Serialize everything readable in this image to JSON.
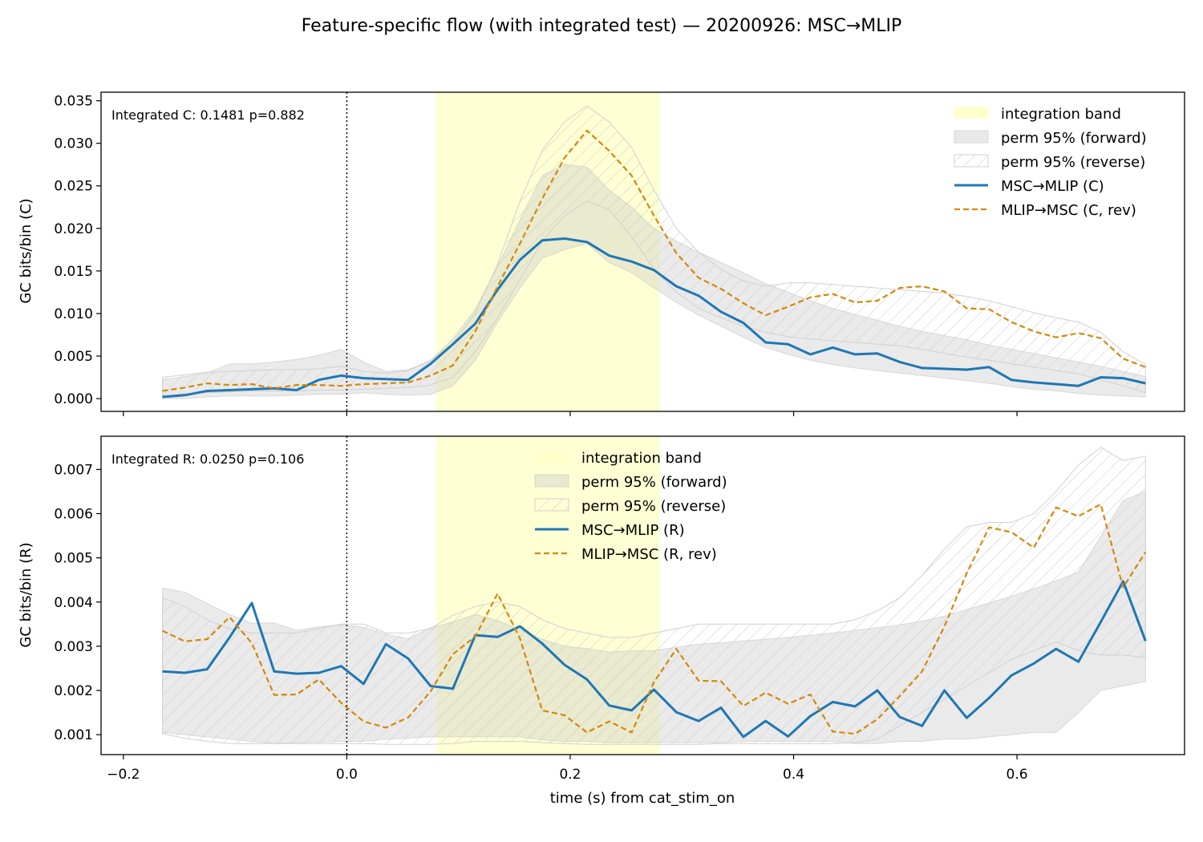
{
  "figure": {
    "title": "Feature-specific flow (with integrated test) — 20200926: MSC→MLIP",
    "xlabel": "time (s) from cat_stim_on"
  },
  "colors": {
    "forward": "#1f77b4",
    "reverse": "#d4880a",
    "integration_band": "#ffffcc",
    "perm_forward": "#c8c8c8",
    "perm_reverse_hatch": "#cfcfcf"
  },
  "chart_data": [
    {
      "type": "line",
      "panel": "C",
      "annotation": "Integrated C: 0.1481  p=0.882",
      "ylabel": "GC bits/bin (C)",
      "xlim": [
        -0.22,
        0.75
      ],
      "ylim": [
        -0.0015,
        0.036
      ],
      "xticks": [
        -0.2,
        0.0,
        0.2,
        0.4,
        0.6
      ],
      "xtick_labels": [
        "",
        "",
        "",
        "",
        ""
      ],
      "yticks": [
        0.0,
        0.005,
        0.01,
        0.015,
        0.02,
        0.025,
        0.03,
        0.035
      ],
      "ytick_labels": [
        "0.000",
        "0.005",
        "0.010",
        "0.015",
        "0.020",
        "0.025",
        "0.030",
        "0.035"
      ],
      "legend_position": "top-right",
      "legend": [
        "integration band",
        "perm 95% (forward)",
        "perm 95% (reverse)",
        "MSC→MLIP (C)",
        "MLIP→MSC (C, rev)"
      ],
      "integration_band": [
        0.08,
        0.28
      ],
      "vline_x": 0.0,
      "x": [
        -0.165,
        -0.145,
        -0.125,
        -0.105,
        -0.085,
        -0.065,
        -0.045,
        -0.025,
        -0.005,
        0.015,
        0.035,
        0.055,
        0.075,
        0.095,
        0.115,
        0.135,
        0.155,
        0.175,
        0.195,
        0.215,
        0.235,
        0.255,
        0.275,
        0.295,
        0.315,
        0.335,
        0.355,
        0.375,
        0.395,
        0.415,
        0.435,
        0.455,
        0.475,
        0.495,
        0.515,
        0.535,
        0.555,
        0.575,
        0.595,
        0.615,
        0.635,
        0.655,
        0.675,
        0.695,
        0.715
      ],
      "series": [
        {
          "name": "MSC→MLIP (C)",
          "role": "forward",
          "values": [
            0.0002,
            0.0004,
            0.0009,
            0.001,
            0.0011,
            0.0012,
            0.001,
            0.0022,
            0.0027,
            0.0024,
            0.0023,
            0.0022,
            0.0041,
            0.0064,
            0.0088,
            0.0128,
            0.0163,
            0.0186,
            0.0188,
            0.0184,
            0.0168,
            0.0161,
            0.0151,
            0.0132,
            0.0121,
            0.0102,
            0.0089,
            0.0066,
            0.0064,
            0.0052,
            0.006,
            0.0052,
            0.0053,
            0.0043,
            0.0036,
            0.0035,
            0.0034,
            0.0037,
            0.0022,
            0.0019,
            0.0017,
            0.0015,
            0.0025,
            0.0024,
            0.0018
          ]
        },
        {
          "name": "MLIP→MSC (C, rev)",
          "role": "reverse",
          "values": [
            0.0009,
            0.0013,
            0.0018,
            0.0016,
            0.0017,
            0.0012,
            0.0016,
            0.0016,
            0.0015,
            0.0017,
            0.0018,
            0.0019,
            0.0027,
            0.0039,
            0.0079,
            0.0132,
            0.0182,
            0.0235,
            0.0283,
            0.0315,
            0.0291,
            0.0262,
            0.0215,
            0.0171,
            0.0142,
            0.0129,
            0.0112,
            0.0098,
            0.0108,
            0.0119,
            0.0123,
            0.0113,
            0.0115,
            0.013,
            0.0132,
            0.0126,
            0.0106,
            0.0105,
            0.009,
            0.0079,
            0.0072,
            0.0077,
            0.0071,
            0.0047,
            0.0037
          ]
        }
      ],
      "bands": [
        {
          "name": "perm 95% (forward)",
          "lower": [
            0.0,
            0.0,
            0.0002,
            0.0003,
            0.0003,
            0.0003,
            0.0004,
            0.0005,
            0.0005,
            0.0007,
            0.0005,
            0.0004,
            0.0005,
            0.0015,
            0.0045,
            0.009,
            0.013,
            0.0165,
            0.0175,
            0.0182,
            0.016,
            0.0148,
            0.013,
            0.0113,
            0.0098,
            0.0085,
            0.0072,
            0.006,
            0.0052,
            0.0045,
            0.004,
            0.0036,
            0.0033,
            0.003,
            0.0027,
            0.0024,
            0.0021,
            0.0018,
            0.0014,
            0.0011,
            0.0009,
            0.0006,
            0.0004,
            0.0003,
            0.0002
          ],
          "upper": [
            0.0022,
            0.0026,
            0.003,
            0.0041,
            0.0041,
            0.0043,
            0.0046,
            0.0051,
            0.0058,
            0.0043,
            0.0032,
            0.0034,
            0.0045,
            0.007,
            0.0105,
            0.0155,
            0.021,
            0.0262,
            0.0275,
            0.0272,
            0.0245,
            0.0225,
            0.02,
            0.0185,
            0.0172,
            0.016,
            0.0148,
            0.0135,
            0.0125,
            0.0115,
            0.0106,
            0.0099,
            0.0092,
            0.0085,
            0.0079,
            0.0074,
            0.0069,
            0.0063,
            0.0058,
            0.0053,
            0.0048,
            0.0043,
            0.0038,
            0.0032,
            0.0026
          ]
        },
        {
          "name": "perm 95% (reverse)",
          "lower": [
            0.0003,
            0.0006,
            0.0007,
            0.0008,
            0.0009,
            0.0009,
            0.0009,
            0.001,
            0.001,
            0.0011,
            0.0012,
            0.0013,
            0.0016,
            0.0025,
            0.0055,
            0.0095,
            0.014,
            0.0185,
            0.0215,
            0.0232,
            0.0222,
            0.019,
            0.0152,
            0.0125,
            0.0106,
            0.0095,
            0.0085,
            0.0078,
            0.0073,
            0.007,
            0.0068,
            0.0066,
            0.0064,
            0.0062,
            0.0058,
            0.0053,
            0.0049,
            0.0045,
            0.0041,
            0.0037,
            0.0033,
            0.0029,
            0.0022,
            0.0015,
            0.0007
          ],
          "upper": [
            0.0025,
            0.0028,
            0.0031,
            0.0032,
            0.0033,
            0.0034,
            0.0034,
            0.0035,
            0.0038,
            0.0032,
            0.003,
            0.0033,
            0.0045,
            0.0065,
            0.01,
            0.0158,
            0.0232,
            0.0292,
            0.0325,
            0.0344,
            0.0325,
            0.0295,
            0.0245,
            0.02,
            0.0172,
            0.0152,
            0.0138,
            0.0132,
            0.0136,
            0.0136,
            0.0134,
            0.0132,
            0.013,
            0.0128,
            0.0126,
            0.0124,
            0.012,
            0.0115,
            0.0108,
            0.0101,
            0.0095,
            0.009,
            0.0078,
            0.0055,
            0.004
          ]
        }
      ]
    },
    {
      "type": "line",
      "panel": "R",
      "annotation": "Integrated R: 0.0250  p=0.106",
      "ylabel": "GC bits/bin (R)",
      "xlim": [
        -0.22,
        0.75
      ],
      "ylim": [
        0.00055,
        0.00775
      ],
      "xticks": [
        -0.2,
        0.0,
        0.2,
        0.4,
        0.6
      ],
      "xtick_labels": [
        "−0.2",
        "0.0",
        "0.2",
        "0.4",
        "0.6"
      ],
      "yticks": [
        0.001,
        0.002,
        0.003,
        0.004,
        0.005,
        0.006,
        0.007
      ],
      "ytick_labels": [
        "0.001",
        "0.002",
        "0.003",
        "0.004",
        "0.005",
        "0.006",
        "0.007"
      ],
      "legend_position": "top-center",
      "legend": [
        "integration band",
        "perm 95% (forward)",
        "perm 95% (reverse)",
        "MSC→MLIP (R)",
        "MLIP→MSC (R, rev)"
      ],
      "integration_band": [
        0.08,
        0.28
      ],
      "vline_x": 0.0,
      "x": [
        -0.165,
        -0.145,
        -0.125,
        -0.105,
        -0.085,
        -0.065,
        -0.045,
        -0.025,
        -0.005,
        0.015,
        0.035,
        0.055,
        0.075,
        0.095,
        0.115,
        0.135,
        0.155,
        0.175,
        0.195,
        0.215,
        0.235,
        0.255,
        0.275,
        0.295,
        0.315,
        0.335,
        0.355,
        0.375,
        0.395,
        0.415,
        0.435,
        0.455,
        0.475,
        0.495,
        0.515,
        0.535,
        0.555,
        0.575,
        0.595,
        0.615,
        0.635,
        0.655,
        0.675,
        0.695,
        0.715
      ],
      "series": [
        {
          "name": "MSC→MLIP (R)",
          "role": "forward",
          "values": [
            0.00243,
            0.0024,
            0.00248,
            0.0032,
            0.00398,
            0.00243,
            0.00238,
            0.0024,
            0.00255,
            0.00215,
            0.00305,
            0.00272,
            0.0021,
            0.00204,
            0.00325,
            0.00321,
            0.00345,
            0.00306,
            0.00258,
            0.00225,
            0.00166,
            0.00155,
            0.00202,
            0.00151,
            0.00131,
            0.00161,
            0.00095,
            0.00131,
            0.00096,
            0.00142,
            0.00174,
            0.00164,
            0.002,
            0.0014,
            0.0012,
            0.002,
            0.00138,
            0.00183,
            0.00234,
            0.00261,
            0.00294,
            0.00265,
            0.00355,
            0.00447,
            0.00312
          ]
        },
        {
          "name": "MLIP→MSC (R, rev)",
          "role": "reverse",
          "values": [
            0.00335,
            0.00311,
            0.00316,
            0.00366,
            0.00307,
            0.0019,
            0.00191,
            0.00225,
            0.00172,
            0.0013,
            0.00116,
            0.00139,
            0.00198,
            0.00282,
            0.00322,
            0.00419,
            0.00318,
            0.00155,
            0.00144,
            0.00105,
            0.0013,
            0.00105,
            0.00219,
            0.00294,
            0.00222,
            0.00221,
            0.00165,
            0.00195,
            0.0017,
            0.00191,
            0.00107,
            0.00102,
            0.00135,
            0.00187,
            0.00243,
            0.00345,
            0.00465,
            0.00569,
            0.00558,
            0.00523,
            0.00614,
            0.00594,
            0.00621,
            0.00433,
            0.00513
          ]
        }
      ],
      "bands": [
        {
          "name": "perm 95% (forward)",
          "lower": [
            0.00105,
            0.001,
            0.00095,
            0.0009,
            0.00085,
            0.0008,
            0.00082,
            0.00083,
            0.00085,
            0.00085,
            0.0009,
            0.00092,
            0.00095,
            0.00095,
            0.00095,
            0.00095,
            0.00095,
            0.00088,
            0.00085,
            0.00085,
            0.00082,
            0.00082,
            0.00082,
            0.00082,
            0.00082,
            0.00082,
            0.00085,
            0.00085,
            0.00085,
            0.00085,
            0.00085,
            0.0008,
            0.0008,
            0.00085,
            0.00085,
            0.0009,
            0.0009,
            0.00095,
            0.001,
            0.00105,
            0.00105,
            0.0015,
            0.002,
            0.0021,
            0.0022
          ],
          "upper": [
            0.00432,
            0.00422,
            0.00397,
            0.00372,
            0.00352,
            0.00353,
            0.00336,
            0.00344,
            0.00349,
            0.00343,
            0.00327,
            0.00317,
            0.00342,
            0.00355,
            0.00372,
            0.00358,
            0.00338,
            0.00316,
            0.003,
            0.00295,
            0.00287,
            0.0029,
            0.0029,
            0.00298,
            0.00305,
            0.00308,
            0.00312,
            0.00316,
            0.0032,
            0.00325,
            0.0033,
            0.00336,
            0.00342,
            0.00348,
            0.00357,
            0.00368,
            0.00383,
            0.00398,
            0.00413,
            0.0043,
            0.00448,
            0.00468,
            0.00548,
            0.0063,
            0.0065
          ]
        },
        {
          "name": "perm 95% (reverse)",
          "lower": [
            0.00102,
            0.00092,
            0.00085,
            0.0008,
            0.0008,
            0.0008,
            0.0008,
            0.0008,
            0.0008,
            0.0008,
            0.00078,
            0.00078,
            0.00078,
            0.0008,
            0.00085,
            0.00085,
            0.00085,
            0.00082,
            0.0008,
            0.00078,
            0.00078,
            0.00078,
            0.00078,
            0.00078,
            0.00078,
            0.0008,
            0.0008,
            0.0008,
            0.0008,
            0.0008,
            0.0008,
            0.00082,
            0.0009,
            0.0012,
            0.0015,
            0.0018,
            0.0021,
            0.0024,
            0.0027,
            0.0029,
            0.0031,
            0.0029,
            0.0028,
            0.0028,
            0.00275
          ],
          "upper": [
            0.0041,
            0.0039,
            0.0036,
            0.0034,
            0.0033,
            0.0033,
            0.0033,
            0.0034,
            0.0035,
            0.0035,
            0.0033,
            0.0033,
            0.0034,
            0.0037,
            0.0039,
            0.004,
            0.0039,
            0.0036,
            0.0034,
            0.0033,
            0.0032,
            0.0032,
            0.0033,
            0.0034,
            0.0035,
            0.0035,
            0.0035,
            0.0035,
            0.0035,
            0.0035,
            0.0035,
            0.0036,
            0.0038,
            0.0041,
            0.0046,
            0.0052,
            0.0057,
            0.0058,
            0.0058,
            0.006,
            0.0065,
            0.0071,
            0.0075,
            0.0072,
            0.0073
          ]
        }
      ]
    }
  ]
}
